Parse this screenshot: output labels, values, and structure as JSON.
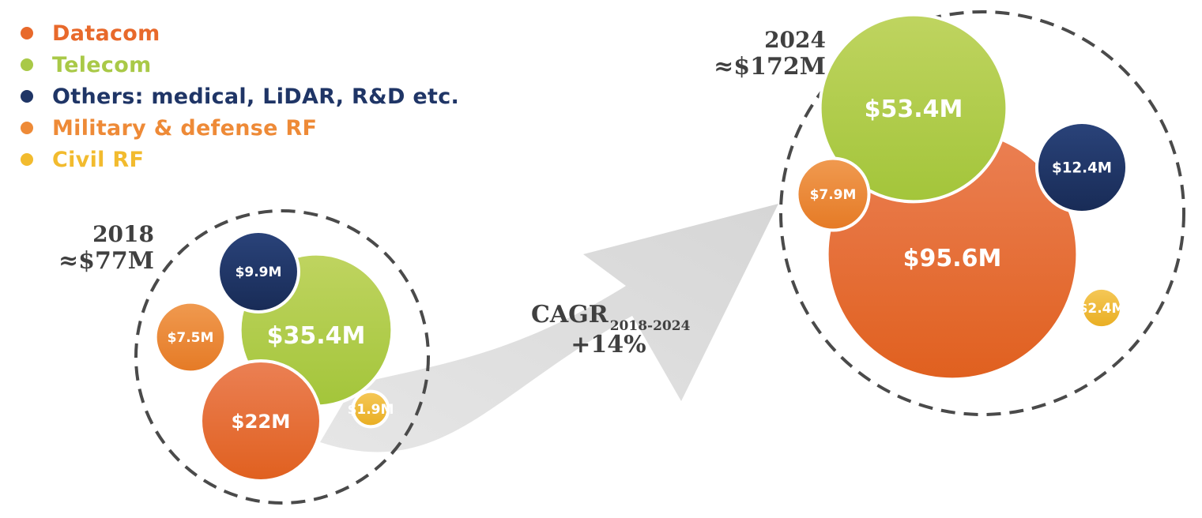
{
  "legend": [
    {
      "label": "Datacom",
      "color": "#E8692B"
    },
    {
      "label": "Telecom",
      "color": "#A9C947"
    },
    {
      "label": "Others: medical, LiDAR, R&D etc.",
      "color": "#1F3566"
    },
    {
      "label": "Military & defense RF",
      "color": "#EE8A37"
    },
    {
      "label": "Civil  RF",
      "color": "#F2BB2E"
    }
  ],
  "cagr": {
    "label": "CAGR",
    "subscript": "2018-2024",
    "value": "+14%"
  },
  "chart_data": {
    "type": "bubble",
    "groups": [
      {
        "year": "2018",
        "total": "≈$77M",
        "segments": [
          {
            "category": "Datacom",
            "value": 22,
            "label": "$22M"
          },
          {
            "category": "Telecom",
            "value": 35.4,
            "label": "$35.4M"
          },
          {
            "category": "Others: medical, LiDAR, R&D etc.",
            "value": 9.9,
            "label": "$9.9M"
          },
          {
            "category": "Military & defense RF",
            "value": 7.5,
            "label": "$7.5M"
          },
          {
            "category": "Civil  RF",
            "value": 1.9,
            "label": "$1.9M"
          }
        ]
      },
      {
        "year": "2024",
        "total": "≈$172M",
        "segments": [
          {
            "category": "Datacom",
            "value": 95.6,
            "label": "$95.6M"
          },
          {
            "category": "Telecom",
            "value": 53.4,
            "label": "$53.4M"
          },
          {
            "category": "Others: medical, LiDAR, R&D etc.",
            "value": 12.4,
            "label": "$12.4M"
          },
          {
            "category": "Military & defense RF",
            "value": 7.9,
            "label": "$7.9M"
          },
          {
            "category": "Civil  RF",
            "value": 2.4,
            "label": "$2.4M"
          }
        ]
      }
    ]
  }
}
